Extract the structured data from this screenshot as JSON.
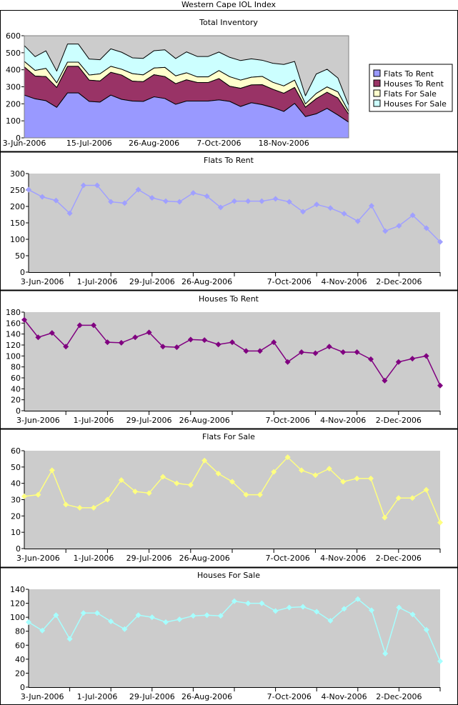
{
  "page_title": "Western Cape IOL Index",
  "colors": {
    "flats_to_rent": "#9999ff",
    "houses_to_rent": "#993366",
    "flats_for_sale": "#ffffcc",
    "houses_for_sale": "#ccffff",
    "plot_bg": "#cccccc",
    "flats_to_rent_line": "#a0a0ff",
    "houses_to_rent_line": "#800080",
    "flats_for_sale_line": "#ffff80",
    "houses_for_sale_line": "#a6ffff"
  },
  "chart_data": [
    {
      "type": "area",
      "stacked": true,
      "title": "Total Inventory",
      "ylim": [
        0,
        600
      ],
      "yticks": [
        0,
        100,
        200,
        300,
        400,
        500,
        600
      ],
      "x_tick_labels": [
        {
          "index": 0,
          "label": "3-Jun-2006"
        },
        {
          "index": 6,
          "label": "15-Jul-2006"
        },
        {
          "index": 12,
          "label": "26-Aug-2006"
        },
        {
          "index": 18,
          "label": "7-Oct-2006"
        },
        {
          "index": 24,
          "label": "18-Nov-2006"
        }
      ],
      "legend_position": "right",
      "series": [
        {
          "name": "Flats To Rent",
          "values": [
            251,
            229,
            218,
            179,
            264,
            264,
            214,
            210,
            251,
            226,
            216,
            214,
            241,
            231,
            197,
            216,
            216,
            216,
            223,
            214,
            184,
            206,
            195,
            178,
            155,
            202,
            125,
            141,
            173,
            134,
            92
          ]
        },
        {
          "name": "Houses To Rent",
          "values": [
            166,
            134,
            142,
            117,
            156,
            156,
            125,
            124,
            134,
            143,
            117,
            116,
            130,
            129,
            121,
            125,
            109,
            109,
            125,
            89,
            107,
            105,
            117,
            107,
            107,
            94,
            55,
            89,
            95,
            100,
            46
          ]
        },
        {
          "name": "Flats For Sale",
          "values": [
            32,
            33,
            48,
            27,
            25,
            25,
            30,
            42,
            35,
            34,
            44,
            40,
            39,
            54,
            46,
            41,
            33,
            33,
            47,
            56,
            48,
            45,
            49,
            41,
            43,
            43,
            19,
            31,
            31,
            36,
            16
          ]
        },
        {
          "name": "Houses For Sale",
          "values": [
            93,
            81,
            103,
            69,
            106,
            106,
            94,
            83,
            103,
            100,
            93,
            97,
            102,
            103,
            102,
            123,
            120,
            120,
            109,
            114,
            115,
            108,
            95,
            112,
            126,
            110,
            48,
            114,
            104,
            82,
            37
          ]
        }
      ]
    },
    {
      "type": "line",
      "title": "Flats To Rent",
      "ylim": [
        0,
        300
      ],
      "yticks": [
        0,
        50,
        100,
        150,
        200,
        250,
        300
      ],
      "x_tick_labels": [
        {
          "index": 1,
          "label": "3-Jun-2006"
        },
        {
          "index": 5,
          "label": "1-Jul-2006"
        },
        {
          "index": 9,
          "label": "29-Jul-2006"
        },
        {
          "index": 13,
          "label": "26-Aug-2006"
        },
        {
          "index": 19,
          "label": "7-Oct-2006"
        },
        {
          "index": 23,
          "label": "4-Nov-2006"
        },
        {
          "index": 27,
          "label": "2-Dec-2006"
        }
      ],
      "values": [
        251,
        229,
        218,
        179,
        264,
        264,
        214,
        210,
        251,
        226,
        216,
        214,
        241,
        231,
        197,
        216,
        216,
        216,
        223,
        214,
        184,
        206,
        195,
        178,
        155,
        202,
        125,
        141,
        173,
        134,
        92
      ]
    },
    {
      "type": "line",
      "title": "Houses To Rent",
      "ylim": [
        0,
        180
      ],
      "yticks": [
        0,
        20,
        40,
        60,
        80,
        100,
        120,
        140,
        160,
        180
      ],
      "x_tick_labels": [
        {
          "index": 1,
          "label": "3-Jun-2006"
        },
        {
          "index": 5,
          "label": "1-Jul-2006"
        },
        {
          "index": 9,
          "label": "29-Jul-2006"
        },
        {
          "index": 13,
          "label": "26-Aug-2006"
        },
        {
          "index": 19,
          "label": "7-Oct-2006"
        },
        {
          "index": 23,
          "label": "4-Nov-2006"
        },
        {
          "index": 27,
          "label": "2-Dec-2006"
        }
      ],
      "values": [
        166,
        134,
        142,
        117,
        156,
        156,
        125,
        124,
        134,
        143,
        117,
        116,
        130,
        129,
        121,
        125,
        109,
        109,
        125,
        89,
        107,
        105,
        117,
        107,
        107,
        94,
        55,
        89,
        95,
        100,
        46
      ]
    },
    {
      "type": "line",
      "title": "Flats For Sale",
      "ylim": [
        0,
        60
      ],
      "yticks": [
        0,
        10,
        20,
        30,
        40,
        50,
        60
      ],
      "x_tick_labels": [
        {
          "index": 1,
          "label": "3-Jun-2006"
        },
        {
          "index": 5,
          "label": "1-Jul-2006"
        },
        {
          "index": 9,
          "label": "29-Jul-2006"
        },
        {
          "index": 13,
          "label": "26-Aug-2006"
        },
        {
          "index": 19,
          "label": "7-Oct-2006"
        },
        {
          "index": 23,
          "label": "4-Nov-2006"
        },
        {
          "index": 27,
          "label": "2-Dec-2006"
        }
      ],
      "values": [
        32,
        33,
        48,
        27,
        25,
        25,
        30,
        42,
        35,
        34,
        44,
        40,
        39,
        54,
        46,
        41,
        33,
        33,
        47,
        56,
        48,
        45,
        49,
        41,
        43,
        43,
        19,
        31,
        31,
        36,
        16
      ]
    },
    {
      "type": "line",
      "title": "Houses For Sale",
      "ylim": [
        0,
        140
      ],
      "yticks": [
        0,
        20,
        40,
        60,
        80,
        100,
        120,
        140
      ],
      "x_tick_labels": [
        {
          "index": 1,
          "label": "3-Jun-2006"
        },
        {
          "index": 5,
          "label": "1-Jul-2006"
        },
        {
          "index": 9,
          "label": "29-Jul-2006"
        },
        {
          "index": 13,
          "label": "26-Aug-2006"
        },
        {
          "index": 19,
          "label": "7-Oct-2006"
        },
        {
          "index": 23,
          "label": "4-Nov-2006"
        },
        {
          "index": 27,
          "label": "2-Dec-2006"
        }
      ],
      "values": [
        93,
        81,
        103,
        69,
        106,
        106,
        94,
        83,
        103,
        100,
        93,
        97,
        102,
        103,
        102,
        123,
        120,
        120,
        109,
        114,
        115,
        108,
        95,
        112,
        126,
        110,
        48,
        114,
        104,
        82,
        37
      ]
    }
  ]
}
